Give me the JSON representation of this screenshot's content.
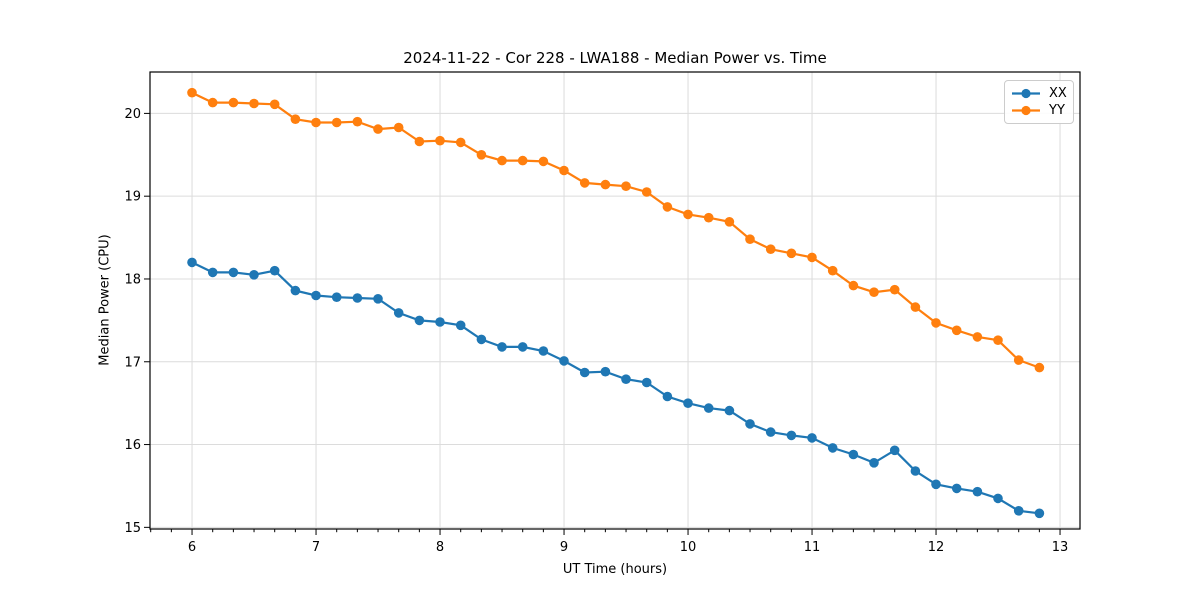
{
  "chart_data": {
    "type": "line",
    "title": "2024-11-22 - Cor 228 - LWA188 - Median Power vs. Time",
    "xlabel": "UT Time (hours)",
    "ylabel": "Median Power (CPU)",
    "xlim": [
      5.661,
      13.161
    ],
    "ylim": [
      14.98,
      20.5
    ],
    "xticks": [
      6,
      7,
      8,
      9,
      10,
      11,
      12,
      13
    ],
    "yticks": [
      15,
      16,
      17,
      18,
      19,
      20
    ],
    "x_minor_step_hours": 0.1667,
    "grid": true,
    "grid_color": "#dcdcdc",
    "axis_color": "#000000",
    "legend_position": "upper right",
    "point_interval": "10 minutes",
    "x": [
      6.0,
      6.1667,
      6.3333,
      6.5,
      6.6667,
      6.8333,
      7.0,
      7.1667,
      7.3333,
      7.5,
      7.6667,
      7.8333,
      8.0,
      8.1667,
      8.3333,
      8.5,
      8.6667,
      8.8333,
      9.0,
      9.1667,
      9.3333,
      9.5,
      9.6667,
      9.8333,
      10.0,
      10.1667,
      10.3333,
      10.5,
      10.6667,
      10.8333,
      11.0,
      11.1667,
      11.3333,
      11.5,
      11.6667,
      11.8333,
      12.0,
      12.1667,
      12.3333,
      12.5,
      12.6667,
      12.8333
    ],
    "series": [
      {
        "name": "XX",
        "color": "#1f77b4",
        "values": [
          18.2,
          18.08,
          18.08,
          18.05,
          18.1,
          17.86,
          17.8,
          17.78,
          17.77,
          17.76,
          17.59,
          17.5,
          17.48,
          17.44,
          17.27,
          17.18,
          17.18,
          17.13,
          17.01,
          16.87,
          16.88,
          16.79,
          16.75,
          16.58,
          16.5,
          16.44,
          16.41,
          16.25,
          16.15,
          16.11,
          16.08,
          15.96,
          15.88,
          15.78,
          15.93,
          15.68,
          15.52,
          15.47,
          15.43,
          15.35,
          15.2,
          15.17
        ]
      },
      {
        "name": "YY",
        "color": "#ff7f0e",
        "values": [
          20.25,
          20.13,
          20.13,
          20.12,
          20.11,
          19.93,
          19.89,
          19.89,
          19.9,
          19.81,
          19.83,
          19.66,
          19.67,
          19.65,
          19.5,
          19.43,
          19.43,
          19.42,
          19.31,
          19.16,
          19.14,
          19.12,
          19.05,
          18.87,
          18.78,
          18.74,
          18.69,
          18.48,
          18.36,
          18.31,
          18.26,
          18.1,
          17.92,
          17.84,
          17.87,
          17.66,
          17.47,
          17.38,
          17.3,
          17.26,
          17.02,
          16.93
        ]
      }
    ]
  }
}
